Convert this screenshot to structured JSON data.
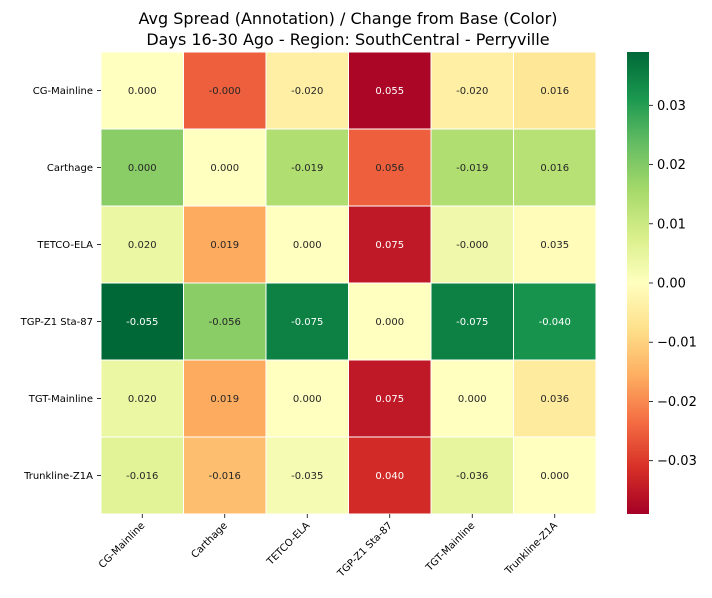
{
  "chart_data": {
    "type": "heatmap",
    "title": "Avg Spread (Annotation) / Change from Base (Color)",
    "subtitle": "Days 16-30 Ago - Region: SouthCentral - Perryville",
    "x_labels": [
      "CG-Mainline",
      "Carthage",
      "TETCO-ELA",
      "TGP-Z1 Sta-87",
      "TGT-Mainline",
      "Trunkline-Z1A"
    ],
    "y_labels": [
      "CG-Mainline",
      "Carthage",
      "TETCO-ELA",
      "TGP-Z1 Sta-87",
      "TGT-Mainline",
      "Trunkline-Z1A"
    ],
    "annotations": [
      [
        "0.000",
        "-0.000",
        "-0.020",
        "0.055",
        "-0.020",
        "0.016"
      ],
      [
        "0.000",
        "0.000",
        "-0.019",
        "0.056",
        "-0.019",
        "0.016"
      ],
      [
        "0.020",
        "0.019",
        "0.000",
        "0.075",
        "-0.000",
        "0.035"
      ],
      [
        "-0.055",
        "-0.056",
        "-0.075",
        "0.000",
        "-0.075",
        "-0.040"
      ],
      [
        "0.020",
        "0.019",
        "0.000",
        "0.075",
        "0.000",
        "0.036"
      ],
      [
        "-0.016",
        "-0.016",
        "-0.035",
        "0.040",
        "-0.036",
        "0.000"
      ]
    ],
    "color_values": [
      [
        0.0,
        -0.025,
        -0.004,
        -0.038,
        -0.004,
        -0.006
      ],
      [
        0.019,
        0.0,
        0.014,
        -0.025,
        0.014,
        0.013
      ],
      [
        0.004,
        -0.016,
        0.0,
        -0.035,
        0.003,
        -0.001
      ],
      [
        0.039,
        0.019,
        0.035,
        0.0,
        0.035,
        0.032
      ],
      [
        0.004,
        -0.016,
        0.0,
        -0.035,
        0.0,
        -0.005
      ],
      [
        0.006,
        -0.013,
        0.002,
        -0.032,
        0.005,
        0.0
      ]
    ],
    "colormap": "RdYlGn",
    "colorbar": {
      "vmin": -0.039,
      "vmax": 0.039,
      "ticks": [
        -0.03,
        -0.02,
        -0.01,
        0.0,
        0.01,
        0.02,
        0.03
      ],
      "tick_labels": [
        "−0.03",
        "−0.02",
        "−0.01",
        "0.00",
        "0.01",
        "0.02",
        "0.03"
      ]
    }
  }
}
